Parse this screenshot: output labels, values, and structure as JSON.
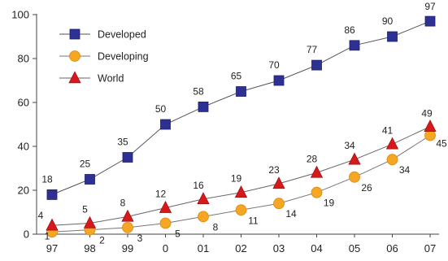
{
  "chart_data": {
    "type": "line",
    "title": "",
    "xlabel": "",
    "ylabel": "",
    "categories": [
      "97",
      "98",
      "99",
      "0",
      "01",
      "02",
      "03",
      "04",
      "05",
      "06",
      "07"
    ],
    "ylim": [
      0,
      100
    ],
    "yticks": [
      "0",
      "20",
      "40",
      "60",
      "80",
      "100"
    ],
    "grid": false,
    "legend_position": "top-left",
    "series": [
      {
        "name": "Developed",
        "marker": "square",
        "color": "#2e3192",
        "values": [
          18,
          25,
          35,
          50,
          58,
          65,
          70,
          77,
          86,
          90,
          97
        ]
      },
      {
        "name": "Developing",
        "marker": "circle",
        "color": "#f5a623",
        "values": [
          1,
          2,
          3,
          5,
          8,
          11,
          14,
          19,
          26,
          34,
          45
        ]
      },
      {
        "name": "World",
        "marker": "triangle",
        "color": "#d7191c",
        "values": [
          4,
          5,
          8,
          12,
          16,
          19,
          23,
          28,
          34,
          41,
          49
        ]
      }
    ]
  }
}
